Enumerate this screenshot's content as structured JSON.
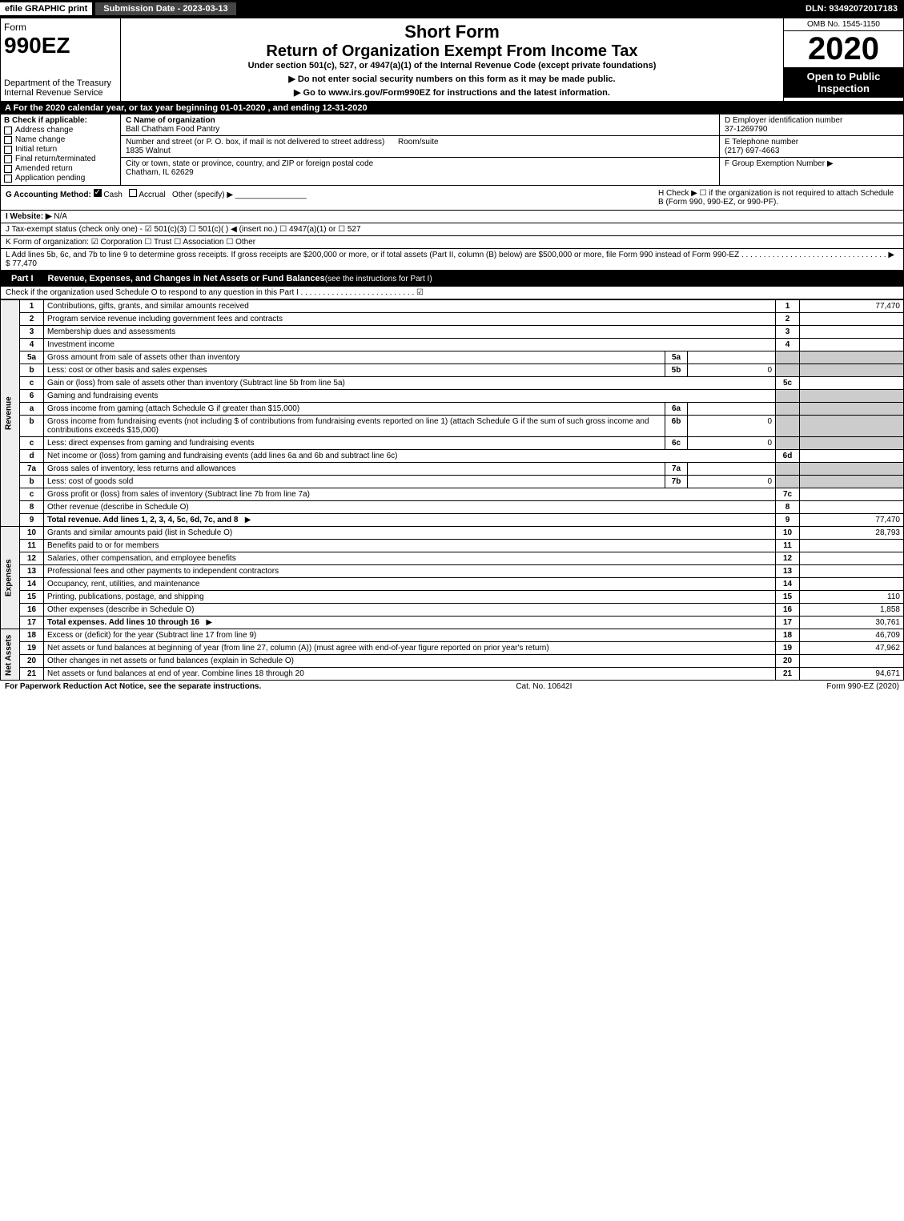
{
  "topbar": {
    "efile": "efile GRAPHIC print",
    "submission": "Submission Date - 2023-03-13",
    "dln": "DLN: 93492072017183"
  },
  "header": {
    "form_word": "Form",
    "form_num": "990EZ",
    "dept": "Department of the Treasury",
    "irs": "Internal Revenue Service",
    "short_form": "Short Form",
    "title": "Return of Organization Exempt From Income Tax",
    "under": "Under section 501(c), 527, or 4947(a)(1) of the Internal Revenue Code (except private foundations)",
    "arrow1": "▶ Do not enter social security numbers on this form as it may be made public.",
    "arrow2": "▶ Go to www.irs.gov/Form990EZ for instructions and the latest information.",
    "omb": "OMB No. 1545-1150",
    "year": "2020",
    "open": "Open to Public Inspection"
  },
  "tax_year_bar": "A For the 2020 calendar year, or tax year beginning 01-01-2020 , and ending 12-31-2020",
  "section_b": {
    "b_label": "B Check if applicable:",
    "checks": [
      "Address change",
      "Name change",
      "Initial return",
      "Final return/terminated",
      "Amended return",
      "Application pending"
    ],
    "c_label": "C Name of organization",
    "org_name": "Ball Chatham Food Pantry",
    "addr_label": "Number and street (or P. O. box, if mail is not delivered to street address)",
    "room_label": "Room/suite",
    "addr": "1835 Walnut",
    "city_label": "City or town, state or province, country, and ZIP or foreign postal code",
    "city": "Chatham, IL  62629",
    "d_label": "D Employer identification number",
    "ein": "37-1269790",
    "e_label": "E Telephone number",
    "phone": "(217) 697-4663",
    "f_label": "F Group Exemption Number  ▶"
  },
  "row_gh": {
    "g": "G Accounting Method: ",
    "g_cash": "Cash",
    "g_accrual": "Accrual",
    "g_other": "Other (specify) ▶",
    "h": "H  Check ▶ ☐ if the organization is not required to attach Schedule B (Form 990, 990-EZ, or 990-PF).",
    "i": "I Website: ▶",
    "i_val": "N/A",
    "j": "J Tax-exempt status (check only one) - ☑ 501(c)(3)  ☐ 501(c)(  ) ◀ (insert no.)  ☐ 4947(a)(1) or  ☐ 527",
    "k": "K Form of organization:  ☑ Corporation  ☐ Trust  ☐ Association  ☐ Other",
    "l": "L Add lines 5b, 6c, and 7b to line 9 to determine gross receipts. If gross receipts are $200,000 or more, or if total assets (Part II, column (B) below) are $500,000 or more, file Form 990 instead of Form 990-EZ  . . . . . . . . . . . . . . . . . . . . . . . . . . . . . . . . . ▶ $ 77,470"
  },
  "part1": {
    "label": "Part I",
    "title": "Revenue, Expenses, and Changes in Net Assets or Fund Balances",
    "sub": " (see the instructions for Part I)",
    "check_line": "Check if the organization used Schedule O to respond to any question in this Part I . . . . . . . . . . . . . . . . . . . . . . . . . . ☑"
  },
  "vlabels": {
    "revenue": "Revenue",
    "expenses": "Expenses",
    "netassets": "Net Assets"
  },
  "lines": {
    "1": {
      "desc": "Contributions, gifts, grants, and similar amounts received",
      "val": "77,470"
    },
    "2": {
      "desc": "Program service revenue including government fees and contracts",
      "val": ""
    },
    "3": {
      "desc": "Membership dues and assessments",
      "val": ""
    },
    "4": {
      "desc": "Investment income",
      "val": ""
    },
    "5a": {
      "desc": "Gross amount from sale of assets other than inventory",
      "subval": ""
    },
    "5b": {
      "desc": "Less: cost or other basis and sales expenses",
      "subval": "0"
    },
    "5c": {
      "desc": "Gain or (loss) from sale of assets other than inventory (Subtract line 5b from line 5a)",
      "val": ""
    },
    "6": {
      "desc": "Gaming and fundraising events"
    },
    "6a": {
      "desc": "Gross income from gaming (attach Schedule G if greater than $15,000)",
      "subval": ""
    },
    "6b": {
      "desc": "Gross income from fundraising events (not including $                    of contributions from fundraising events reported on line 1) (attach Schedule G if the sum of such gross income and contributions exceeds $15,000)",
      "subval": "0"
    },
    "6c": {
      "desc": "Less: direct expenses from gaming and fundraising events",
      "subval": "0"
    },
    "6d": {
      "desc": "Net income or (loss) from gaming and fundraising events (add lines 6a and 6b and subtract line 6c)",
      "val": ""
    },
    "7a": {
      "desc": "Gross sales of inventory, less returns and allowances",
      "subval": ""
    },
    "7b": {
      "desc": "Less: cost of goods sold",
      "subval": "0"
    },
    "7c": {
      "desc": "Gross profit or (loss) from sales of inventory (Subtract line 7b from line 7a)",
      "val": ""
    },
    "8": {
      "desc": "Other revenue (describe in Schedule O)",
      "val": ""
    },
    "9": {
      "desc": "Total revenue. Add lines 1, 2, 3, 4, 5c, 6d, 7c, and 8",
      "val": "77,470"
    },
    "10": {
      "desc": "Grants and similar amounts paid (list in Schedule O)",
      "val": "28,793"
    },
    "11": {
      "desc": "Benefits paid to or for members",
      "val": ""
    },
    "12": {
      "desc": "Salaries, other compensation, and employee benefits",
      "val": ""
    },
    "13": {
      "desc": "Professional fees and other payments to independent contractors",
      "val": ""
    },
    "14": {
      "desc": "Occupancy, rent, utilities, and maintenance",
      "val": ""
    },
    "15": {
      "desc": "Printing, publications, postage, and shipping",
      "val": "110"
    },
    "16": {
      "desc": "Other expenses (describe in Schedule O)",
      "val": "1,858"
    },
    "17": {
      "desc": "Total expenses. Add lines 10 through 16",
      "val": "30,761"
    },
    "18": {
      "desc": "Excess or (deficit) for the year (Subtract line 17 from line 9)",
      "val": "46,709"
    },
    "19": {
      "desc": "Net assets or fund balances at beginning of year (from line 27, column (A)) (must agree with end-of-year figure reported on prior year's return)",
      "val": "47,962"
    },
    "20": {
      "desc": "Other changes in net assets or fund balances (explain in Schedule O)",
      "val": ""
    },
    "21": {
      "desc": "Net assets or fund balances at end of year. Combine lines 18 through 20",
      "val": "94,671"
    }
  },
  "footer": {
    "left": "For Paperwork Reduction Act Notice, see the separate instructions.",
    "mid": "Cat. No. 10642I",
    "right": "Form 990-EZ (2020)"
  }
}
